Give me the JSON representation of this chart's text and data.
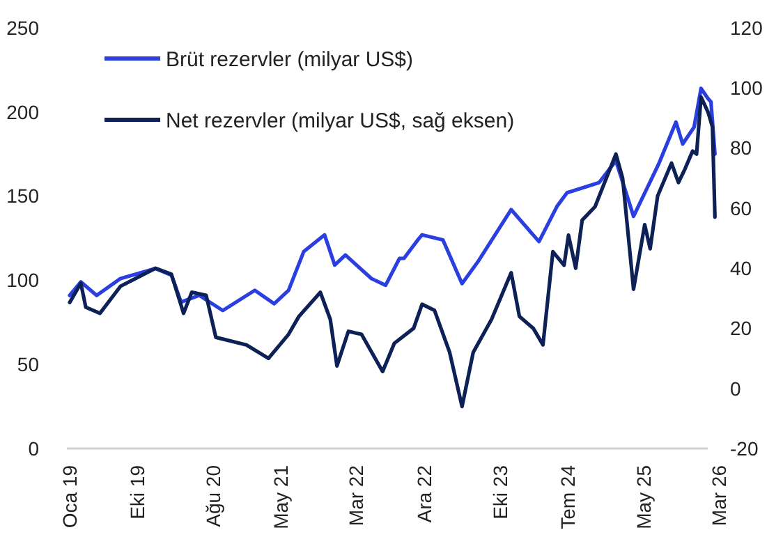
{
  "chart_data": {
    "type": "line",
    "legend": "top left",
    "grid": false,
    "xlim": [
      "2019-01",
      "2026-03"
    ],
    "xticks": [
      {
        "value": "2019-01",
        "label": "Oca 19"
      },
      {
        "value": "2019-10",
        "label": "Eki 19"
      },
      {
        "value": "2020-08",
        "label": "Ağu 20"
      },
      {
        "value": "2021-05",
        "label": "May 21"
      },
      {
        "value": "2022-03",
        "label": "Mar 22"
      },
      {
        "value": "2022-12",
        "label": "Ara 22"
      },
      {
        "value": "2023-10",
        "label": "Eki 23"
      },
      {
        "value": "2024-07",
        "label": "Tem 24"
      },
      {
        "value": "2025-05",
        "label": "May 25"
      },
      {
        "value": "2026-03",
        "label": "Mar 26"
      }
    ],
    "ylim": [
      0,
      250
    ],
    "yticks": [
      0,
      50,
      100,
      150,
      200,
      250
    ],
    "y2lim": [
      -20,
      120
    ],
    "y2ticks": [
      -20,
      0,
      20,
      40,
      60,
      80,
      100,
      120
    ],
    "series": [
      {
        "name": "Brüt rezervler (milyar US$)",
        "color": "#2b3fe0",
        "x": [
          "2019-01-01",
          "2019-02-15",
          "2019-04-20",
          "2019-07-25",
          "2019-12-13",
          "2020-02-15",
          "2020-03-25",
          "2020-06-06",
          "2020-09-09",
          "2021-01-16",
          "2021-04-04",
          "2021-06-01",
          "2021-08-01",
          "2021-10-24",
          "2021-12-04",
          "2022-01-16",
          "2022-05-01",
          "2022-06-27",
          "2022-08-22",
          "2022-09-09",
          "2022-11-04",
          "2022-11-21",
          "2023-02-13",
          "2023-05-01",
          "2023-07-04",
          "2023-11-15",
          "2024-03-06",
          "2024-05-18",
          "2024-06-27",
          "2024-11-03",
          "2025-01-10",
          "2025-03-22",
          "2025-07-01",
          "2025-09-09",
          "2025-10-06",
          "2025-11-21",
          "2025-12-19",
          "2026-01-16",
          "2026-01-28",
          "2026-02-13"
        ],
        "values": [
          91,
          99,
          91,
          101,
          107,
          103,
          87,
          91,
          82,
          94,
          86,
          94,
          117,
          127,
          109,
          115,
          101,
          97,
          113,
          113,
          124,
          127,
          124,
          98,
          111,
          142,
          123,
          144,
          152,
          158,
          171,
          138,
          169,
          194,
          181,
          191,
          214,
          208,
          206,
          175
        ]
      },
      {
        "name": "Net rezervler (milyar US$, sağ eksen)",
        "color": "#0d2157",
        "axis": "y2",
        "x": [
          "2019-01-01",
          "2019-02-15",
          "2019-03-07",
          "2019-05-03",
          "2019-07-25",
          "2019-12-13",
          "2020-02-15",
          "2020-04-04",
          "2020-05-07",
          "2020-07-04",
          "2020-08-12",
          "2020-12-13",
          "2021-03-12",
          "2021-06-01",
          "2021-07-13",
          "2021-10-07",
          "2021-11-16",
          "2021-12-13",
          "2022-01-28",
          "2022-03-22",
          "2022-06-15",
          "2022-08-01",
          "2022-10-18",
          "2022-11-21",
          "2023-01-10",
          "2023-03-12",
          "2023-05-01",
          "2023-06-15",
          "2023-08-28",
          "2023-11-15",
          "2023-12-18",
          "2024-02-12",
          "2024-03-22",
          "2024-05-01",
          "2024-06-15",
          "2024-07-03",
          "2024-08-01",
          "2024-08-27",
          "2024-10-18",
          "2024-11-21",
          "2025-01-10",
          "2025-02-06",
          "2025-03-22",
          "2025-05-06",
          "2025-05-28",
          "2025-06-27",
          "2025-08-22",
          "2025-09-19",
          "2025-10-15",
          "2025-11-15",
          "2025-12-01",
          "2025-12-19",
          "2026-01-16",
          "2026-02-03",
          "2026-02-13"
        ],
        "values": [
          28.6,
          35,
          27,
          25,
          34,
          40,
          38,
          25,
          32,
          31,
          17,
          14.5,
          10,
          18,
          24,
          32,
          23,
          7.5,
          19,
          18,
          5.6,
          15,
          20,
          28,
          26,
          12,
          -6,
          12,
          23,
          38.5,
          24,
          20,
          14.5,
          45.5,
          41,
          51,
          40,
          56,
          60.5,
          67.6,
          78,
          70,
          33,
          54.5,
          46.5,
          64,
          75,
          68.5,
          73,
          79,
          78,
          97,
          92,
          87,
          57
        ]
      }
    ]
  }
}
